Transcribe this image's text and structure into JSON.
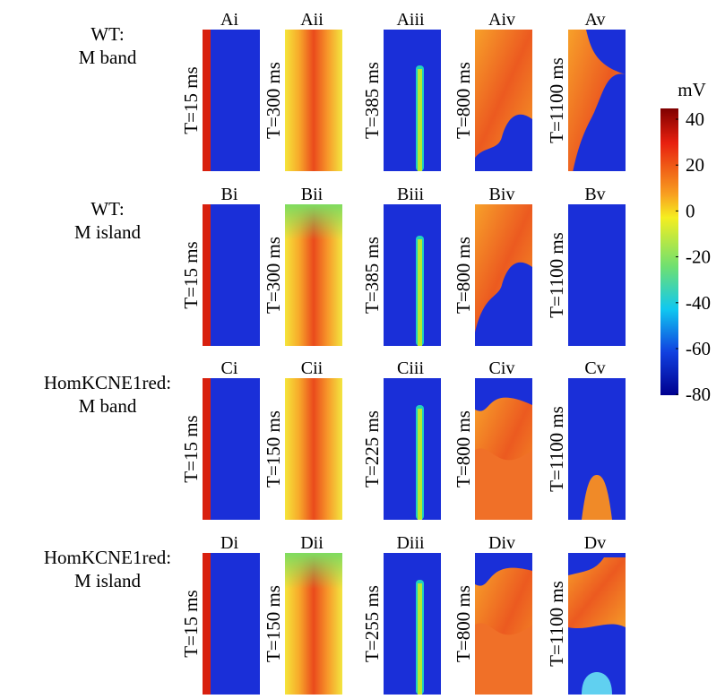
{
  "rows": [
    {
      "label": [
        "WT:",
        "M band"
      ],
      "panels": [
        {
          "label": "Ai",
          "time": "T=15 ms"
        },
        {
          "label": "Aii",
          "time": "T=300 ms"
        },
        {
          "label": "Aiii",
          "time": "T=385 ms"
        },
        {
          "label": "Aiv",
          "time": "T=800 ms"
        },
        {
          "label": "Av",
          "time": "T=1100 ms"
        }
      ]
    },
    {
      "label": [
        "WT:",
        "M island"
      ],
      "panels": [
        {
          "label": "Bi",
          "time": "T=15 ms"
        },
        {
          "label": "Bii",
          "time": "T=300 ms"
        },
        {
          "label": "Biii",
          "time": "T=385 ms"
        },
        {
          "label": "Biv",
          "time": "T=800 ms"
        },
        {
          "label": "Bv",
          "time": "T=1100 ms"
        }
      ]
    },
    {
      "label": [
        "HomKCNE1red:",
        "M band"
      ],
      "panels": [
        {
          "label": "Ci",
          "time": "T=15 ms"
        },
        {
          "label": "Cii",
          "time": "T=150 ms"
        },
        {
          "label": "Ciii",
          "time": "T=225 ms"
        },
        {
          "label": "Civ",
          "time": "T=800 ms"
        },
        {
          "label": "Cv",
          "time": "T=1100 ms"
        }
      ]
    },
    {
      "label": [
        "HomKCNE1red:",
        "M island"
      ],
      "panels": [
        {
          "label": "Di",
          "time": "T=15 ms"
        },
        {
          "label": "Dii",
          "time": "T=150 ms"
        },
        {
          "label": "Diii",
          "time": "T=255 ms"
        },
        {
          "label": "Div",
          "time": "T=800 ms"
        },
        {
          "label": "Dv",
          "time": "T=1100 ms"
        }
      ]
    }
  ],
  "colorbar": {
    "unit": "mV",
    "ticks": [
      40,
      20,
      0,
      -20,
      -40,
      -60,
      -80
    ]
  }
}
